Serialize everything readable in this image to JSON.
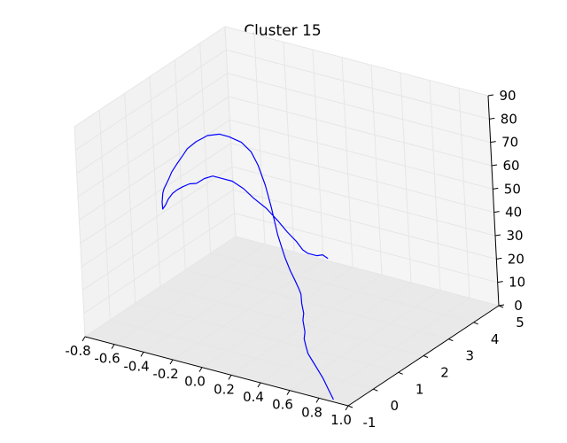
{
  "chart_data": {
    "type": "line",
    "projection": "3d",
    "title": "Cluster 15",
    "xlabel": "",
    "ylabel": "",
    "zlabel": "",
    "xlim": [
      -0.8,
      1.0
    ],
    "ylim": [
      -1,
      5
    ],
    "zlim": [
      0,
      90
    ],
    "x_ticks": [
      "-0.8",
      "-0.6",
      "-0.4",
      "-0.2",
      "0.0",
      "0.2",
      "0.4",
      "0.6",
      "0.8",
      "1.0"
    ],
    "y_ticks": [
      "-1",
      "0",
      "1",
      "2",
      "3",
      "4",
      "5"
    ],
    "z_ticks": [
      "0",
      "10",
      "20",
      "30",
      "40",
      "50",
      "60",
      "70",
      "80",
      "90"
    ],
    "grid": true,
    "line_color": "#0000ff",
    "pane_color": "#f2f2f2",
    "grid_color": "#e6e6e6",
    "series": [
      {
        "x": [
          -0.15,
          -0.15,
          -0.155,
          -0.16,
          -0.16,
          -0.165,
          -0.17,
          -0.18,
          -0.2,
          -0.23,
          -0.26,
          -0.3,
          -0.34,
          -0.38,
          -0.42,
          -0.46,
          -0.49,
          -0.52,
          -0.56,
          -0.61,
          -0.66,
          -0.7,
          -0.72,
          -0.74,
          -0.75,
          -0.74,
          -0.72,
          -0.7,
          -0.68,
          -0.65,
          -0.6,
          -0.52,
          -0.42,
          -0.3,
          -0.2,
          -0.08,
          0.02,
          0.1,
          0.18,
          0.25,
          0.32,
          0.38,
          0.43,
          0.48,
          0.52,
          0.55,
          0.57,
          0.58,
          0.59,
          0.6,
          0.61,
          0.62,
          0.65,
          0.7,
          0.75,
          0.8,
          0.85,
          0.9
        ],
        "y": [
          4.9,
          4.7,
          4.5,
          4.2,
          4.0,
          3.8,
          3.5,
          3.2,
          2.9,
          2.6,
          2.4,
          2.2,
          2.0,
          1.9,
          1.8,
          1.7,
          1.6,
          1.5,
          1.5,
          1.6,
          1.7,
          1.8,
          1.8,
          1.9,
          2.0,
          2.0,
          2.1,
          2.1,
          2.2,
          2.2,
          2.2,
          2.1,
          2.0,
          1.8,
          1.6,
          1.4,
          1.2,
          1.0,
          0.8,
          0.6,
          0.4,
          0.3,
          0.2,
          0.1,
          0.0,
          -0.1,
          -0.2,
          -0.2,
          -0.3,
          -0.3,
          -0.4,
          -0.4,
          -0.5,
          -0.6,
          -0.7,
          -0.8,
          -0.9,
          -1.0
        ],
        "z": [
          2,
          5,
          6,
          9,
          12,
          17,
          23,
          30,
          37,
          43,
          48,
          52,
          54,
          55,
          54,
          52,
          52,
          51,
          49,
          46,
          42,
          38,
          36,
          38,
          41,
          43,
          47,
          50,
          53,
          56,
          61,
          66,
          71,
          75,
          77,
          78,
          77,
          74,
          68,
          61,
          52,
          44,
          40,
          37,
          35,
          34,
          31,
          27,
          25,
          20,
          18,
          15,
          13,
          11,
          9,
          7,
          4,
          1
        ]
      }
    ]
  }
}
